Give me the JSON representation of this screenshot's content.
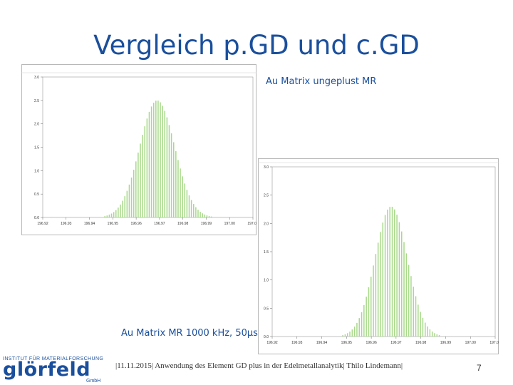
{
  "slide": {
    "title": "Vergleich p.GD und c.GD",
    "caption_top": "Au Matrix ungeplust MR",
    "caption_bottom": "Au Matrix MR 1000 kHz, 50µs",
    "footer": "|11.11.2015| Anwendung des Element GD plus in der Edelmetallanalytik| Thilo Lindemann|",
    "page_number": "7",
    "logo": {
      "line1": "INSTITUT FÜR MATERIALFORSCHUNG",
      "word": "glörfeld",
      "line2": "GmbH"
    }
  },
  "chart_data": [
    {
      "type": "bar",
      "panel": "top-left",
      "color": "#a8d98a",
      "ylim": [
        0,
        3.0
      ],
      "yticks": [
        "0.0",
        "0.5",
        "1.0",
        "1.5",
        "2.0",
        "2.5",
        "3.0"
      ],
      "xlim": [
        196.92,
        197.01
      ],
      "xticks": [
        "196.92",
        "196.93",
        "196.94",
        "196.95",
        "196.96",
        "196.97",
        "196.98",
        "196.99",
        "197.00",
        "197.01"
      ],
      "x_center": 196.969,
      "sigma": 0.0075,
      "peak": 2.5,
      "bar_step": 0.00095
    },
    {
      "type": "bar",
      "panel": "bottom-right",
      "color": "#a8d98a",
      "ylim": [
        0,
        3.0
      ],
      "yticks": [
        "0.0",
        "0.5",
        "1.0",
        "1.5",
        "2.0",
        "2.5",
        "3.0"
      ],
      "xlim": [
        196.92,
        197.01
      ],
      "xticks": [
        "196.92",
        "196.93",
        "196.94",
        "196.95",
        "196.96",
        "196.97",
        "196.98",
        "196.99",
        "197.00",
        "197.01"
      ],
      "x_center": 196.968,
      "sigma": 0.0065,
      "peak": 2.3,
      "bar_step": 0.00095
    }
  ]
}
